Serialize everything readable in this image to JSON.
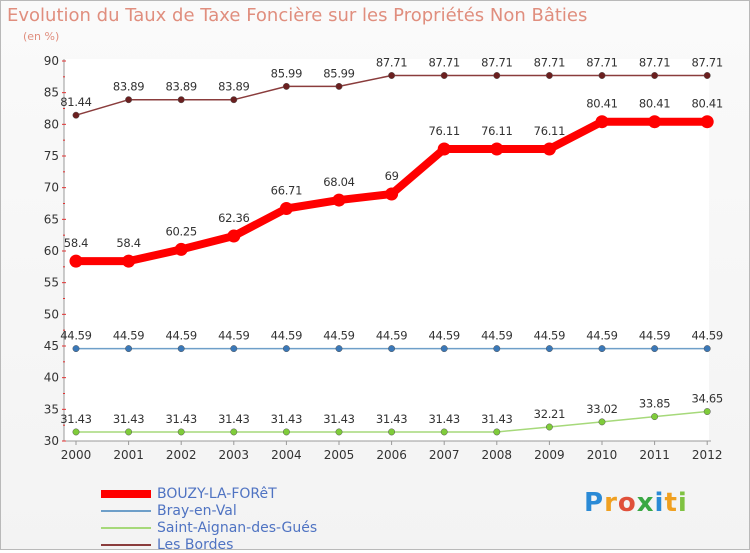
{
  "chart_data": {
    "type": "line",
    "title": "Evolution du Taux de Taxe Foncière sur les Propriétés Non Bâties",
    "ylabel": "(en %)",
    "xlabel": "",
    "ylim": [
      30,
      90
    ],
    "yticks": [
      30,
      35,
      40,
      45,
      50,
      55,
      60,
      65,
      70,
      75,
      80,
      85,
      90
    ],
    "categories": [
      "2000",
      "2001",
      "2002",
      "2003",
      "2004",
      "2005",
      "2006",
      "2007",
      "2008",
      "2009",
      "2010",
      "2011",
      "2012"
    ],
    "grid": false,
    "series": [
      {
        "name": "BOUZY-LA-FORêT",
        "color": "#ff0000",
        "emphasis": true,
        "values": [
          58.4,
          58.4,
          60.25,
          62.36,
          66.71,
          68.04,
          69,
          76.11,
          76.11,
          76.11,
          80.41,
          80.41,
          80.41
        ],
        "labels": [
          "58.4",
          "58.4",
          "60.25",
          "62.36",
          "66.71",
          "68.04",
          "69",
          "76.11",
          "76.11",
          "76.11",
          "80.41",
          "80.41",
          "80.41"
        ]
      },
      {
        "name": "Bray-en-Val",
        "color": "#6e9fc9",
        "point_color": "#3a78b8",
        "values": [
          44.59,
          44.59,
          44.59,
          44.59,
          44.59,
          44.59,
          44.59,
          44.59,
          44.59,
          44.59,
          44.59,
          44.59,
          44.59
        ],
        "labels": [
          "44.59",
          "44.59",
          "44.59",
          "44.59",
          "44.59",
          "44.59",
          "44.59",
          "44.59",
          "44.59",
          "44.59",
          "44.59",
          "44.59",
          "44.59"
        ]
      },
      {
        "name": "Saint-Aignan-des-Gués",
        "color": "#a6d97a",
        "point_color": "#7fcc3a",
        "values": [
          31.43,
          31.43,
          31.43,
          31.43,
          31.43,
          31.43,
          31.43,
          31.43,
          31.43,
          32.21,
          33.02,
          33.85,
          34.65
        ],
        "labels": [
          "31.43",
          "31.43",
          "31.43",
          "31.43",
          "31.43",
          "31.43",
          "31.43",
          "31.43",
          "31.43",
          "32.21",
          "33.02",
          "33.85",
          "34.65"
        ]
      },
      {
        "name": "Les Bordes",
        "color": "#8a3c3c",
        "point_color": "#6b1f1f",
        "values": [
          81.44,
          83.89,
          83.89,
          83.89,
          85.99,
          85.99,
          87.71,
          87.71,
          87.71,
          87.71,
          87.71,
          87.71,
          87.71
        ],
        "labels": [
          "81.44",
          "83.89",
          "83.89",
          "83.89",
          "85.99",
          "85.99",
          "87.71",
          "87.71",
          "87.71",
          "87.71",
          "87.71",
          "87.71",
          "87.71"
        ]
      }
    ],
    "legend_position": "bottom-left"
  },
  "logo_letters": [
    "P",
    "r",
    "o",
    "x",
    "i",
    "t",
    "i"
  ]
}
